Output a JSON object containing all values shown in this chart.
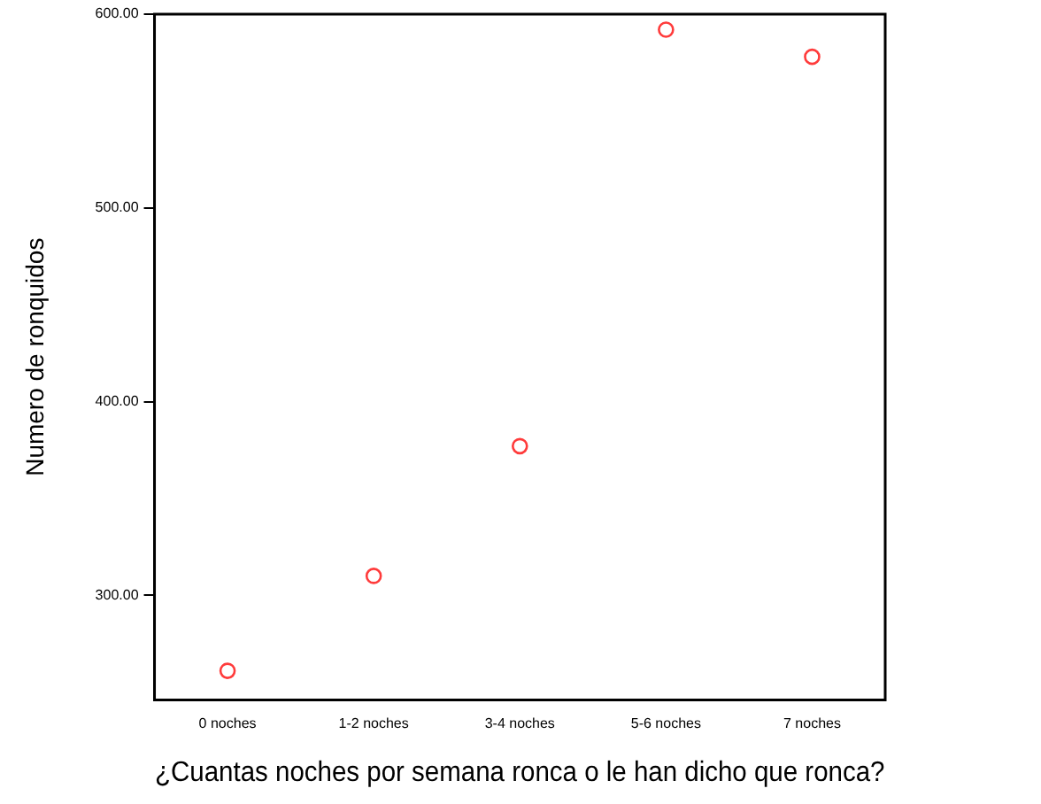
{
  "chart_data": {
    "type": "scatter",
    "xlabel": "¿Cuantas noches por semana ronca o le han dicho que ronca?",
    "ylabel": "Numero de ronquidos",
    "categories": [
      "0 noches",
      "1-2 noches",
      "3-4 noches",
      "5-6 noches",
      "7 noches"
    ],
    "series": [
      {
        "color": "#ff3b3b",
        "values": [
          261,
          310,
          377,
          592,
          578
        ]
      }
    ],
    "ylim": [
      246,
      600
    ],
    "yticks": [
      {
        "value": 300,
        "label": "300.00"
      },
      {
        "value": 400,
        "label": "400.00"
      },
      {
        "value": 500,
        "label": "500.00"
      },
      {
        "value": 600,
        "label": "600.00"
      }
    ],
    "marker": "circle",
    "grid": false,
    "legend": false
  }
}
